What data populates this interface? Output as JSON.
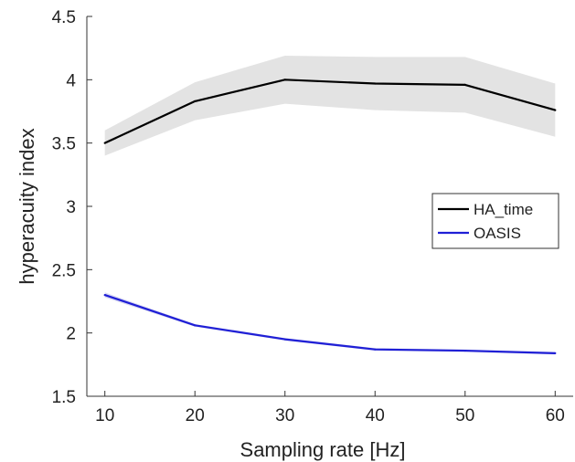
{
  "chart_data": {
    "type": "line",
    "title": "",
    "xlabel": "Sampling rate [Hz]",
    "ylabel": "hyperacuity index",
    "xlim": [
      8,
      62
    ],
    "ylim": [
      1.5,
      4.5
    ],
    "x": [
      10,
      20,
      30,
      40,
      50,
      60
    ],
    "xticks": [
      10,
      20,
      30,
      40,
      50,
      60
    ],
    "yticks": [
      1.5,
      2,
      2.5,
      3,
      3.5,
      4,
      4.5
    ],
    "xtick_labels": [
      "10",
      "20",
      "30",
      "40",
      "50",
      "60"
    ],
    "ytick_labels": [
      "1.5",
      "2",
      "2.5",
      "3",
      "3.5",
      "4",
      "4.5"
    ],
    "grid": false,
    "legend_position": "right",
    "series": [
      {
        "name": "HA_time",
        "color": "#000000",
        "band_color": "#e3e3e3",
        "values": [
          3.5,
          3.83,
          4.0,
          3.97,
          3.96,
          3.76
        ],
        "upper": [
          3.6,
          3.98,
          4.19,
          4.18,
          4.18,
          3.97
        ],
        "lower": [
          3.4,
          3.68,
          3.81,
          3.76,
          3.74,
          3.55
        ]
      },
      {
        "name": "OASIS",
        "color": "#1f1fd6",
        "band_color": "#d9d9f2",
        "values": [
          2.3,
          2.06,
          1.95,
          1.87,
          1.86,
          1.84
        ],
        "upper": [
          2.32,
          2.07,
          1.96,
          1.88,
          1.87,
          1.85
        ],
        "lower": [
          2.28,
          2.05,
          1.94,
          1.86,
          1.85,
          1.83
        ]
      }
    ]
  }
}
